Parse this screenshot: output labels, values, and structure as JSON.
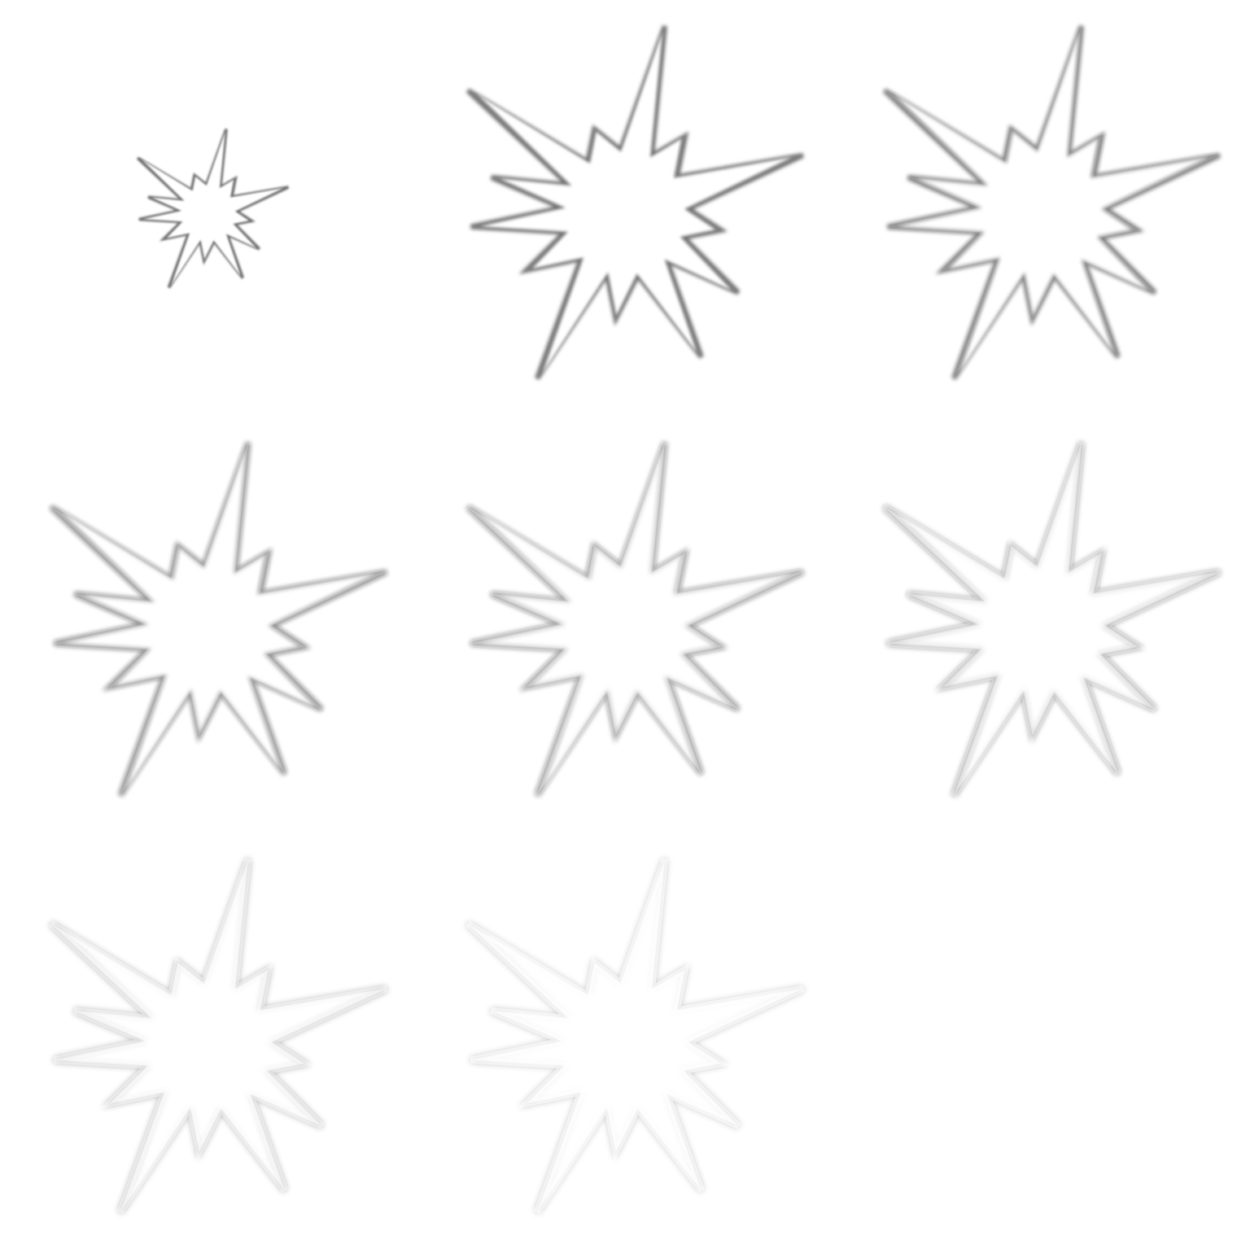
{
  "sprite_sheet": {
    "background": "#ffffff",
    "stroke_color": "#6e6e6e",
    "fill_color": "#ffffff",
    "frame_count": 8,
    "columns": 3,
    "frames": [
      {
        "index": 1,
        "scale": 0.45,
        "opacity": 1.0,
        "blur": 1.2,
        "fade": 0.0
      },
      {
        "index": 2,
        "scale": 1.0,
        "opacity": 1.0,
        "blur": 2.0,
        "fade": 0.05
      },
      {
        "index": 3,
        "scale": 1.0,
        "opacity": 1.0,
        "blur": 2.4,
        "fade": 0.15
      },
      {
        "index": 4,
        "scale": 1.0,
        "opacity": 0.95,
        "blur": 2.6,
        "fade": 0.25
      },
      {
        "index": 5,
        "scale": 1.0,
        "opacity": 0.9,
        "blur": 2.8,
        "fade": 0.35
      },
      {
        "index": 6,
        "scale": 1.0,
        "opacity": 0.8,
        "blur": 3.2,
        "fade": 0.5
      },
      {
        "index": 7,
        "scale": 1.0,
        "opacity": 0.6,
        "blur": 3.6,
        "fade": 0.65
      },
      {
        "index": 8,
        "scale": 1.0,
        "opacity": 0.45,
        "blur": 4.0,
        "fade": 0.8
      }
    ]
  }
}
